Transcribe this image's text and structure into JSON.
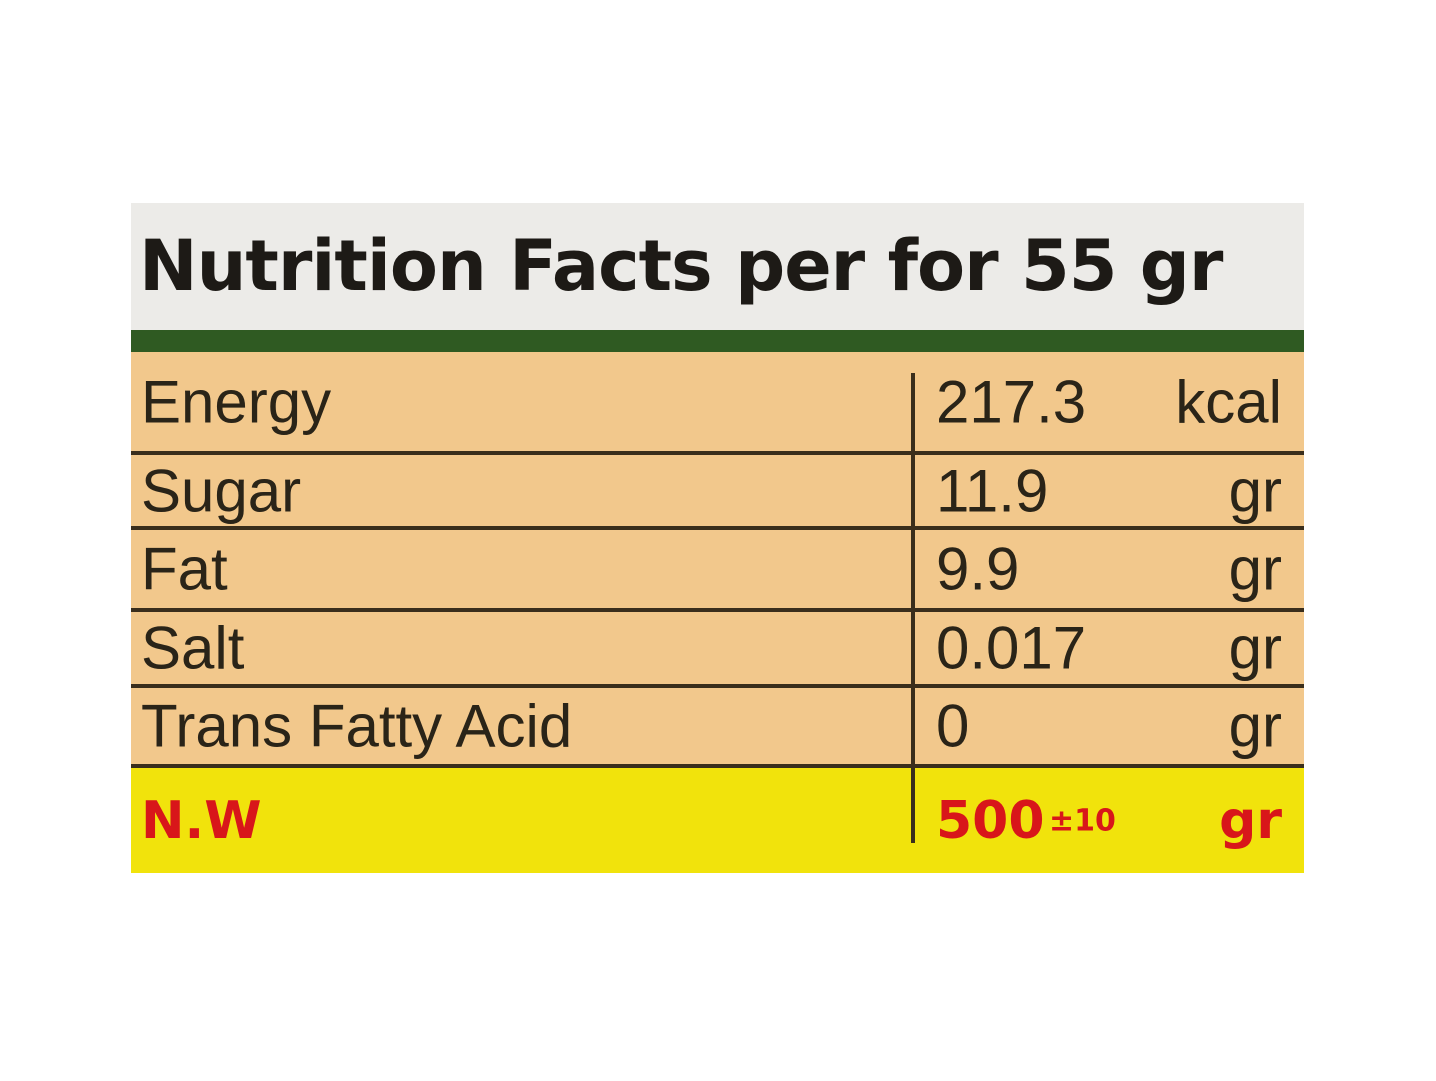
{
  "header": {
    "title": "Nutrition Facts per for 55 gr"
  },
  "table": {
    "rows": [
      {
        "label": "Energy",
        "value": "217.3",
        "unit": "kcal"
      },
      {
        "label": "Sugar",
        "value": "11.9",
        "unit": "gr"
      },
      {
        "label": "Fat",
        "value": "9.9",
        "unit": "gr"
      },
      {
        "label": "Salt",
        "value": "0.017",
        "unit": "gr"
      },
      {
        "label": "Trans Fatty Acid",
        "value": "0",
        "unit": "gr"
      }
    ]
  },
  "net_weight": {
    "label": "N.W",
    "value": "500",
    "tolerance": "±10",
    "unit": "gr"
  }
}
